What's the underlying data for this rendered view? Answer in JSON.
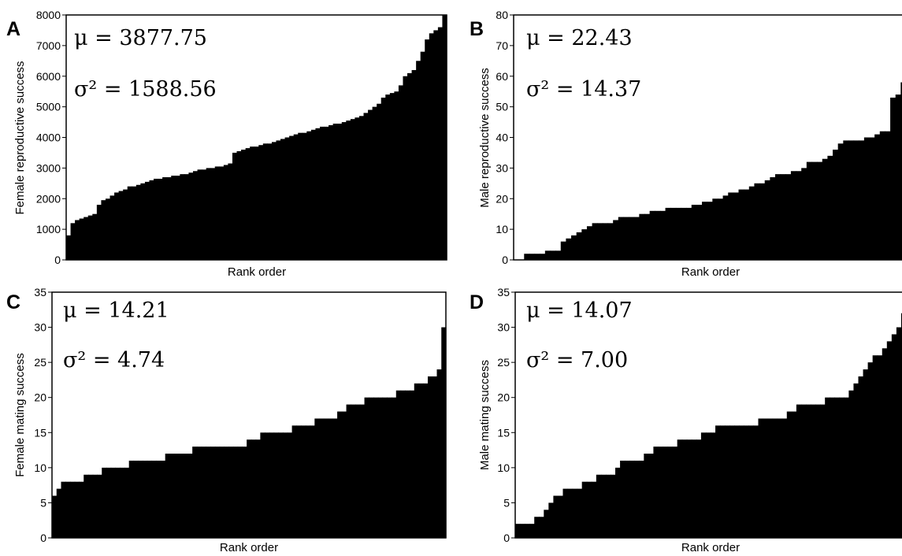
{
  "chart_data": [
    {
      "panel": "A",
      "type": "bar",
      "ylabel": "Female reproductive success",
      "xlabel": "Rank order",
      "ylim": [
        0,
        8000
      ],
      "yticks": [
        0,
        1000,
        2000,
        3000,
        4000,
        5000,
        6000,
        7000,
        8000
      ],
      "grid": false,
      "stats": {
        "mu": "μ = 3877.75",
        "sigma2": "σ² = 1588.56"
      },
      "values": [
        800,
        1200,
        1300,
        1350,
        1400,
        1450,
        1500,
        1800,
        1950,
        2000,
        2100,
        2200,
        2250,
        2300,
        2400,
        2400,
        2450,
        2500,
        2550,
        2600,
        2650,
        2650,
        2700,
        2700,
        2750,
        2750,
        2800,
        2800,
        2850,
        2900,
        2950,
        2950,
        3000,
        3000,
        3050,
        3050,
        3100,
        3150,
        3500,
        3550,
        3600,
        3650,
        3700,
        3700,
        3750,
        3800,
        3800,
        3850,
        3900,
        3950,
        4000,
        4050,
        4100,
        4150,
        4150,
        4200,
        4250,
        4300,
        4350,
        4350,
        4400,
        4450,
        4450,
        4500,
        4550,
        4600,
        4650,
        4700,
        4800,
        4900,
        5000,
        5100,
        5300,
        5400,
        5450,
        5500,
        5700,
        6000,
        6100,
        6200,
        6500,
        6800,
        7200,
        7400,
        7500,
        7600,
        8000
      ]
    },
    {
      "panel": "B",
      "type": "bar",
      "ylabel": "Male reproductive success",
      "xlabel": "Rank order",
      "ylim": [
        0,
        80
      ],
      "yticks": [
        0,
        10,
        20,
        30,
        40,
        50,
        60,
        70,
        80
      ],
      "grid": false,
      "stats": {
        "mu": "μ = 22.43",
        "sigma2": "σ² = 14.37"
      },
      "values": [
        0,
        0,
        2,
        2,
        2,
        2,
        3,
        3,
        3,
        6,
        7,
        8,
        9,
        10,
        11,
        12,
        12,
        12,
        12,
        13,
        14,
        14,
        14,
        14,
        15,
        15,
        16,
        16,
        16,
        17,
        17,
        17,
        17,
        17,
        18,
        18,
        19,
        19,
        20,
        20,
        21,
        22,
        22,
        23,
        23,
        24,
        25,
        25,
        26,
        27,
        28,
        28,
        28,
        29,
        29,
        30,
        32,
        32,
        32,
        33,
        34,
        36,
        38,
        39,
        39,
        39,
        39,
        40,
        40,
        41,
        42,
        42,
        53,
        54,
        58
      ]
    },
    {
      "panel": "C",
      "type": "bar",
      "ylabel": "Female mating success",
      "xlabel": "Rank order",
      "ylim": [
        0,
        35
      ],
      "yticks": [
        0,
        5,
        10,
        15,
        20,
        25,
        30,
        35
      ],
      "grid": false,
      "stats": {
        "mu": "μ = 14.21",
        "sigma2": "σ² = 4.74"
      },
      "values": [
        6,
        7,
        8,
        8,
        8,
        8,
        8,
        9,
        9,
        9,
        9,
        10,
        10,
        10,
        10,
        10,
        10,
        11,
        11,
        11,
        11,
        11,
        11,
        11,
        11,
        12,
        12,
        12,
        12,
        12,
        12,
        13,
        13,
        13,
        13,
        13,
        13,
        13,
        13,
        13,
        13,
        13,
        13,
        14,
        14,
        14,
        15,
        15,
        15,
        15,
        15,
        15,
        15,
        16,
        16,
        16,
        16,
        16,
        17,
        17,
        17,
        17,
        17,
        18,
        18,
        19,
        19,
        19,
        19,
        20,
        20,
        20,
        20,
        20,
        20,
        20,
        21,
        21,
        21,
        21,
        22,
        22,
        22,
        23,
        23,
        24,
        30
      ]
    },
    {
      "panel": "D",
      "type": "bar",
      "ylabel": "Male mating success",
      "xlabel": "Rank order",
      "ylim": [
        0,
        35
      ],
      "yticks": [
        0,
        5,
        10,
        15,
        20,
        25,
        30,
        35
      ],
      "grid": false,
      "stats": {
        "mu": "μ = 14.07",
        "sigma2": "σ² = 7.00"
      },
      "values": [
        2,
        2,
        2,
        2,
        3,
        3,
        4,
        5,
        6,
        6,
        7,
        7,
        7,
        7,
        8,
        8,
        8,
        9,
        9,
        9,
        9,
        10,
        11,
        11,
        11,
        11,
        11,
        12,
        12,
        13,
        13,
        13,
        13,
        13,
        14,
        14,
        14,
        14,
        14,
        15,
        15,
        15,
        16,
        16,
        16,
        16,
        16,
        16,
        16,
        16,
        16,
        17,
        17,
        17,
        17,
        17,
        17,
        18,
        18,
        19,
        19,
        19,
        19,
        19,
        19,
        20,
        20,
        20,
        20,
        20,
        21,
        22,
        23,
        24,
        25,
        26,
        26,
        27,
        28,
        29,
        30,
        32
      ]
    }
  ]
}
